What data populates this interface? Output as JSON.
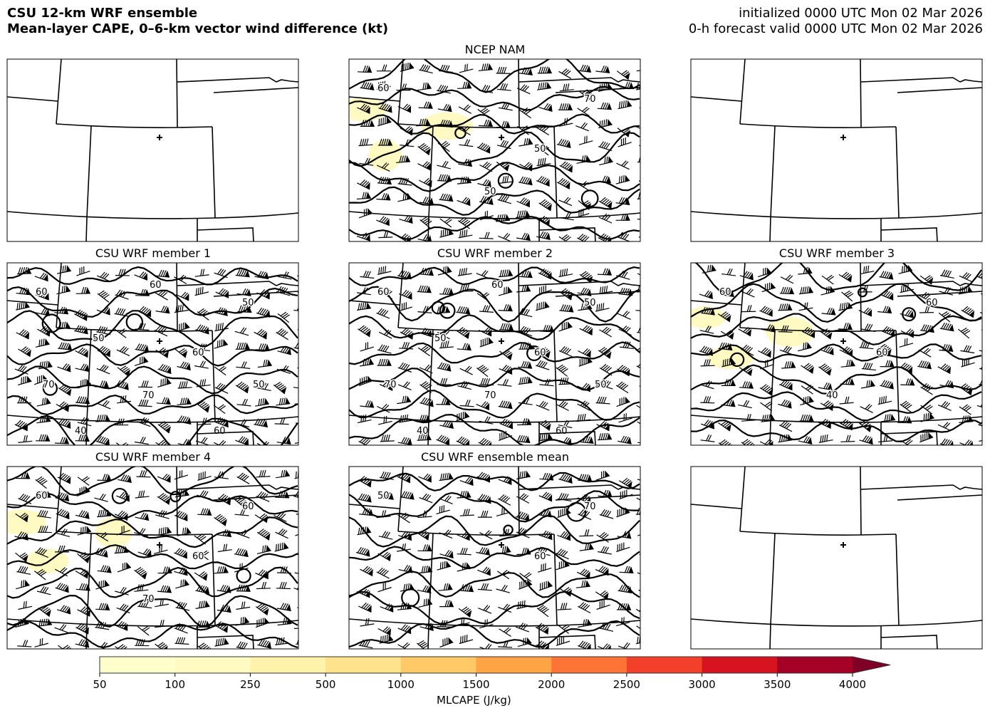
{
  "header": {
    "title_line1": "CSU 12-km WRF ensemble",
    "title_line2": "Mean-layer CAPE, 0–6-km vector wind difference (kt)",
    "init_text": "initialized 0000 UTC Mon 02 Mar 2026",
    "valid_text": "0-h forecast valid 0000 UTC Mon 02 Mar 2026"
  },
  "panels": [
    {
      "title": "",
      "has_data": false,
      "contour_labels": []
    },
    {
      "title": "NCEP NAM",
      "has_data": true,
      "contour_labels": [
        "60",
        "70",
        "50",
        "50"
      ],
      "cape_blobs": 3
    },
    {
      "title": "",
      "has_data": false,
      "contour_labels": []
    },
    {
      "title": "CSU WRF member 1",
      "has_data": true,
      "contour_labels": [
        "60",
        "60",
        "50",
        "50",
        "60",
        "70",
        "70",
        "50",
        "40",
        "60"
      ],
      "cape_blobs": 0
    },
    {
      "title": "CSU WRF member 2",
      "has_data": true,
      "contour_labels": [
        "60",
        "60",
        "50",
        "50",
        "60",
        "70",
        "70",
        "50",
        "40",
        "60"
      ],
      "cape_blobs": 0
    },
    {
      "title": "CSU WRF member 3",
      "has_data": true,
      "contour_labels": [
        "60",
        "60",
        "60",
        "40"
      ],
      "cape_blobs": 3
    },
    {
      "title": "CSU WRF member 4",
      "has_data": true,
      "contour_labels": [
        "60",
        "60",
        "60",
        "70"
      ],
      "cape_blobs": 3
    },
    {
      "title": "CSU WRF ensemble mean",
      "has_data": true,
      "contour_labels": [
        "50",
        "70",
        "60"
      ],
      "cape_blobs": 0
    },
    {
      "title": "",
      "has_data": false,
      "contour_labels": []
    }
  ],
  "colorbar": {
    "label": "MLCAPE (J/kg)",
    "ticks": [
      "50",
      "100",
      "250",
      "500",
      "1000",
      "1500",
      "2000",
      "2500",
      "3000",
      "3500",
      "4000"
    ],
    "colors": [
      "#ffffcc",
      "#fffac2",
      "#fff2ab",
      "#fee38c",
      "#fec966",
      "#fea445",
      "#fd7436",
      "#f2402a",
      "#d6131f",
      "#a50026"
    ],
    "extend_color": "#800026",
    "extend": "max"
  }
}
